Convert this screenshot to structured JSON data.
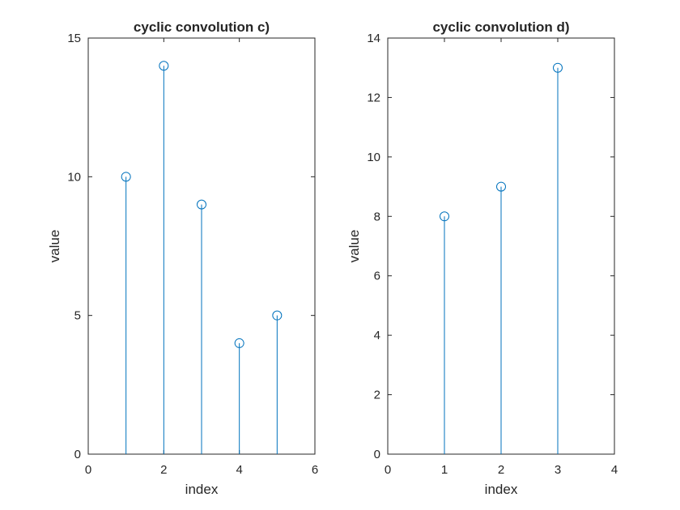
{
  "colors": {
    "stem": "#0072BD",
    "axis": "#262626",
    "background": "#ffffff"
  },
  "chart_data": [
    {
      "type": "stem",
      "title": "cyclic convolution c)",
      "xlabel": "index",
      "ylabel": "value",
      "xlim": [
        0,
        6
      ],
      "ylim": [
        0,
        15
      ],
      "xticks": [
        0,
        2,
        4,
        6
      ],
      "yticks": [
        0,
        5,
        10,
        15
      ],
      "x": [
        1,
        2,
        3,
        4,
        5
      ],
      "y": [
        10,
        14,
        9,
        4,
        5
      ],
      "grid": false
    },
    {
      "type": "stem",
      "title": "cyclic convolution d)",
      "xlabel": "index",
      "ylabel": "value",
      "xlim": [
        0,
        4
      ],
      "ylim": [
        0,
        14
      ],
      "xticks": [
        0,
        1,
        2,
        3,
        4
      ],
      "yticks": [
        0,
        2,
        4,
        6,
        8,
        10,
        12,
        14
      ],
      "x": [
        1,
        2,
        3
      ],
      "y": [
        8,
        9,
        13
      ],
      "grid": false
    }
  ]
}
